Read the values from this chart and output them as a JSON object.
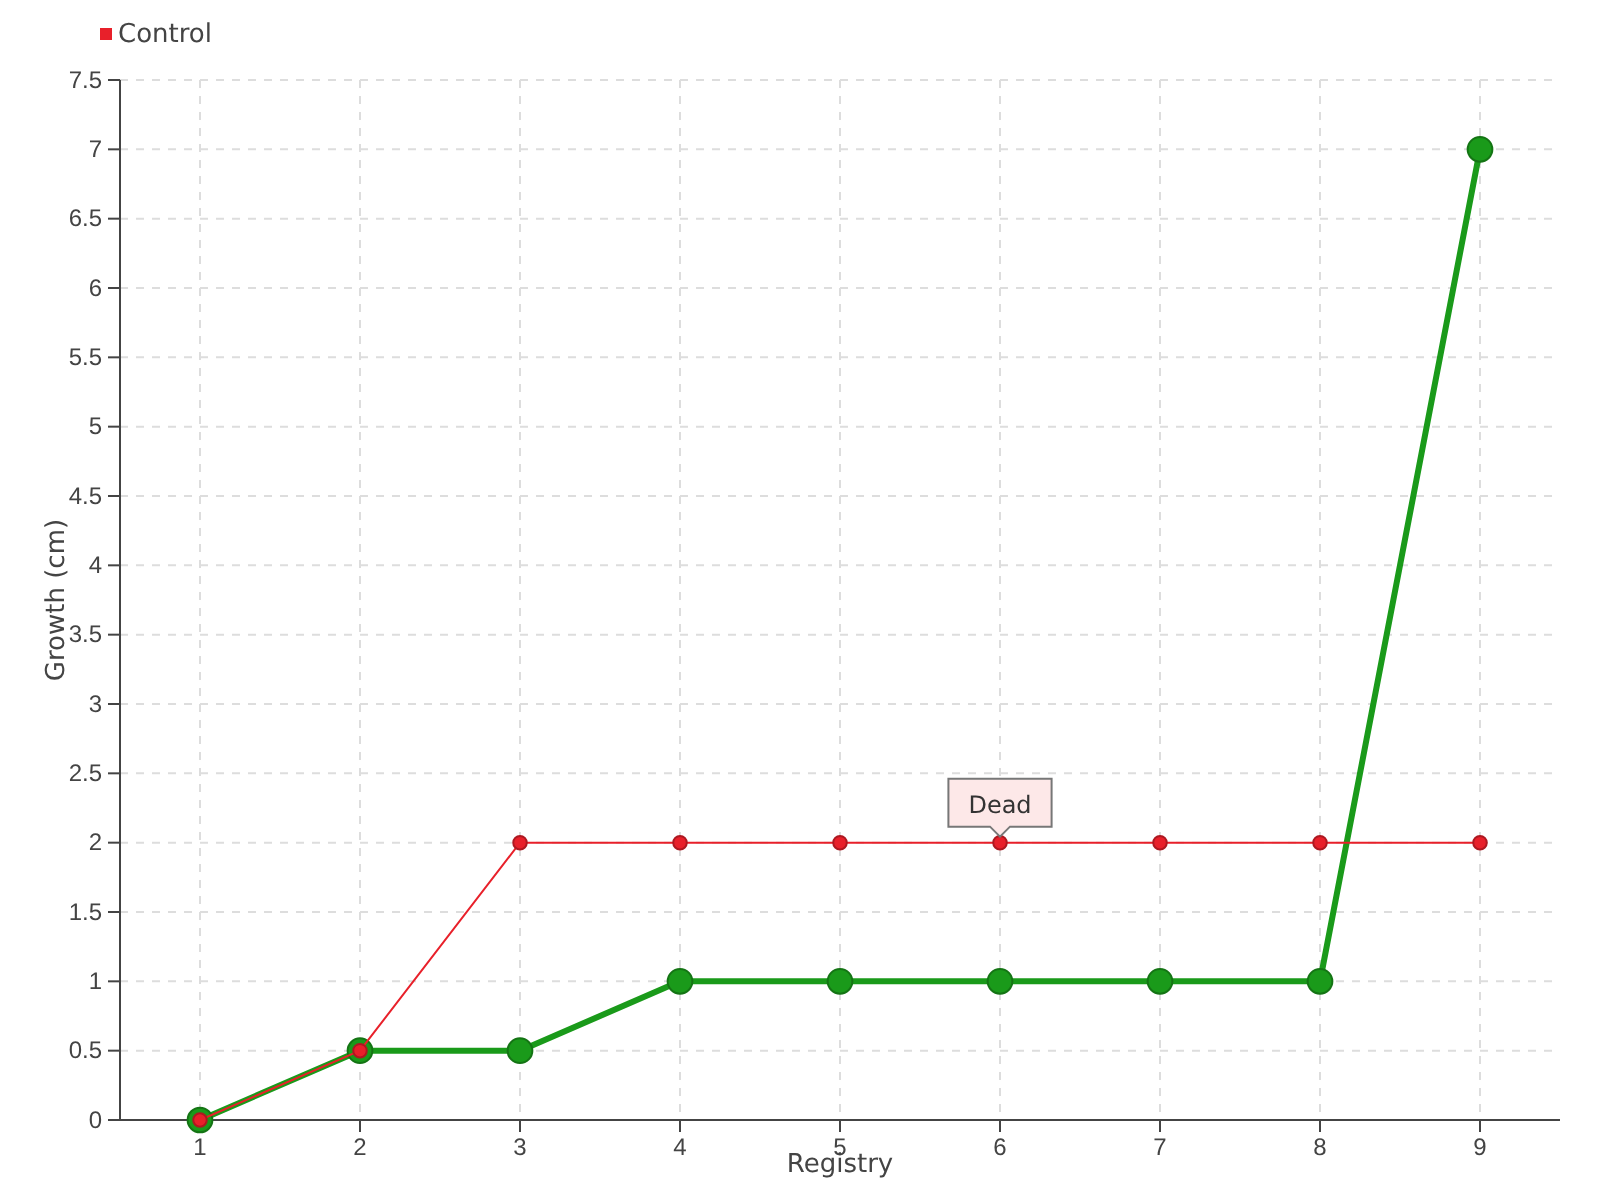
{
  "chart_data": {
    "type": "line",
    "xlabel": "Registry",
    "ylabel": "Growth (cm)",
    "categories": [
      "1",
      "2",
      "3",
      "4",
      "5",
      "6",
      "7",
      "8",
      "9"
    ],
    "series": [
      {
        "color": "#1a9a1a",
        "values": [
          0,
          0.5,
          0.5,
          1,
          1,
          1,
          1,
          1,
          7
        ]
      },
      {
        "name": "Control",
        "color": "#e8202a",
        "values": [
          0,
          0.5,
          2,
          2,
          2,
          2,
          2,
          2,
          2
        ]
      }
    ],
    "ylim": [
      0,
      7.5
    ],
    "yticks": [
      0,
      0.5,
      1,
      1.5,
      2,
      2.5,
      3,
      3.5,
      4,
      4.5,
      5,
      5.5,
      6,
      6.5,
      7,
      7.5
    ],
    "grid": true,
    "legend": "top left",
    "marker": "circle",
    "annotations": [
      {
        "text": "Dead",
        "x": "6",
        "y": 2
      }
    ]
  }
}
